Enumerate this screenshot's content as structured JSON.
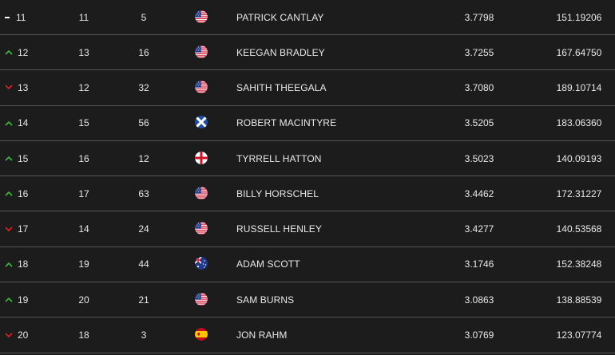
{
  "rows": [
    {
      "move": "flat",
      "rank": "11",
      "prev": "11",
      "events": "5",
      "flag": "us-flag-icon",
      "name": "PATRICK CANTLAY",
      "avg": "3.7798",
      "total": "151.19206"
    },
    {
      "move": "up",
      "rank": "12",
      "prev": "13",
      "events": "16",
      "flag": "us-flag-icon",
      "name": "KEEGAN BRADLEY",
      "avg": "3.7255",
      "total": "167.64750"
    },
    {
      "move": "down",
      "rank": "13",
      "prev": "12",
      "events": "32",
      "flag": "us-flag-icon",
      "name": "SAHITH THEEGALA",
      "avg": "3.7080",
      "total": "189.10714"
    },
    {
      "move": "up",
      "rank": "14",
      "prev": "15",
      "events": "56",
      "flag": "scotland-flag-icon",
      "name": "ROBERT MACINTYRE",
      "avg": "3.5205",
      "total": "183.06360"
    },
    {
      "move": "up",
      "rank": "15",
      "prev": "16",
      "events": "12",
      "flag": "england-flag-icon",
      "name": "TYRRELL HATTON",
      "avg": "3.5023",
      "total": "140.09193"
    },
    {
      "move": "up",
      "rank": "16",
      "prev": "17",
      "events": "63",
      "flag": "us-flag-icon",
      "name": "BILLY HORSCHEL",
      "avg": "3.4462",
      "total": "172.31227"
    },
    {
      "move": "down",
      "rank": "17",
      "prev": "14",
      "events": "24",
      "flag": "us-flag-icon",
      "name": "RUSSELL HENLEY",
      "avg": "3.4277",
      "total": "140.53568"
    },
    {
      "move": "up",
      "rank": "18",
      "prev": "19",
      "events": "44",
      "flag": "australia-flag-icon",
      "name": "ADAM SCOTT",
      "avg": "3.1746",
      "total": "152.38248"
    },
    {
      "move": "up",
      "rank": "19",
      "prev": "20",
      "events": "21",
      "flag": "us-flag-icon",
      "name": "SAM BURNS",
      "avg": "3.0863",
      "total": "138.88539"
    },
    {
      "move": "down",
      "rank": "20",
      "prev": "18",
      "events": "3",
      "flag": "spain-flag-icon",
      "name": "JON RAHM",
      "avg": "3.0769",
      "total": "123.07774"
    }
  ],
  "colors": {
    "up": "#3cba3c",
    "down": "#e02020",
    "flat": "#ffffff",
    "text": "#e8e8e8",
    "background": "#1c1c1c",
    "divider": "#555555"
  }
}
